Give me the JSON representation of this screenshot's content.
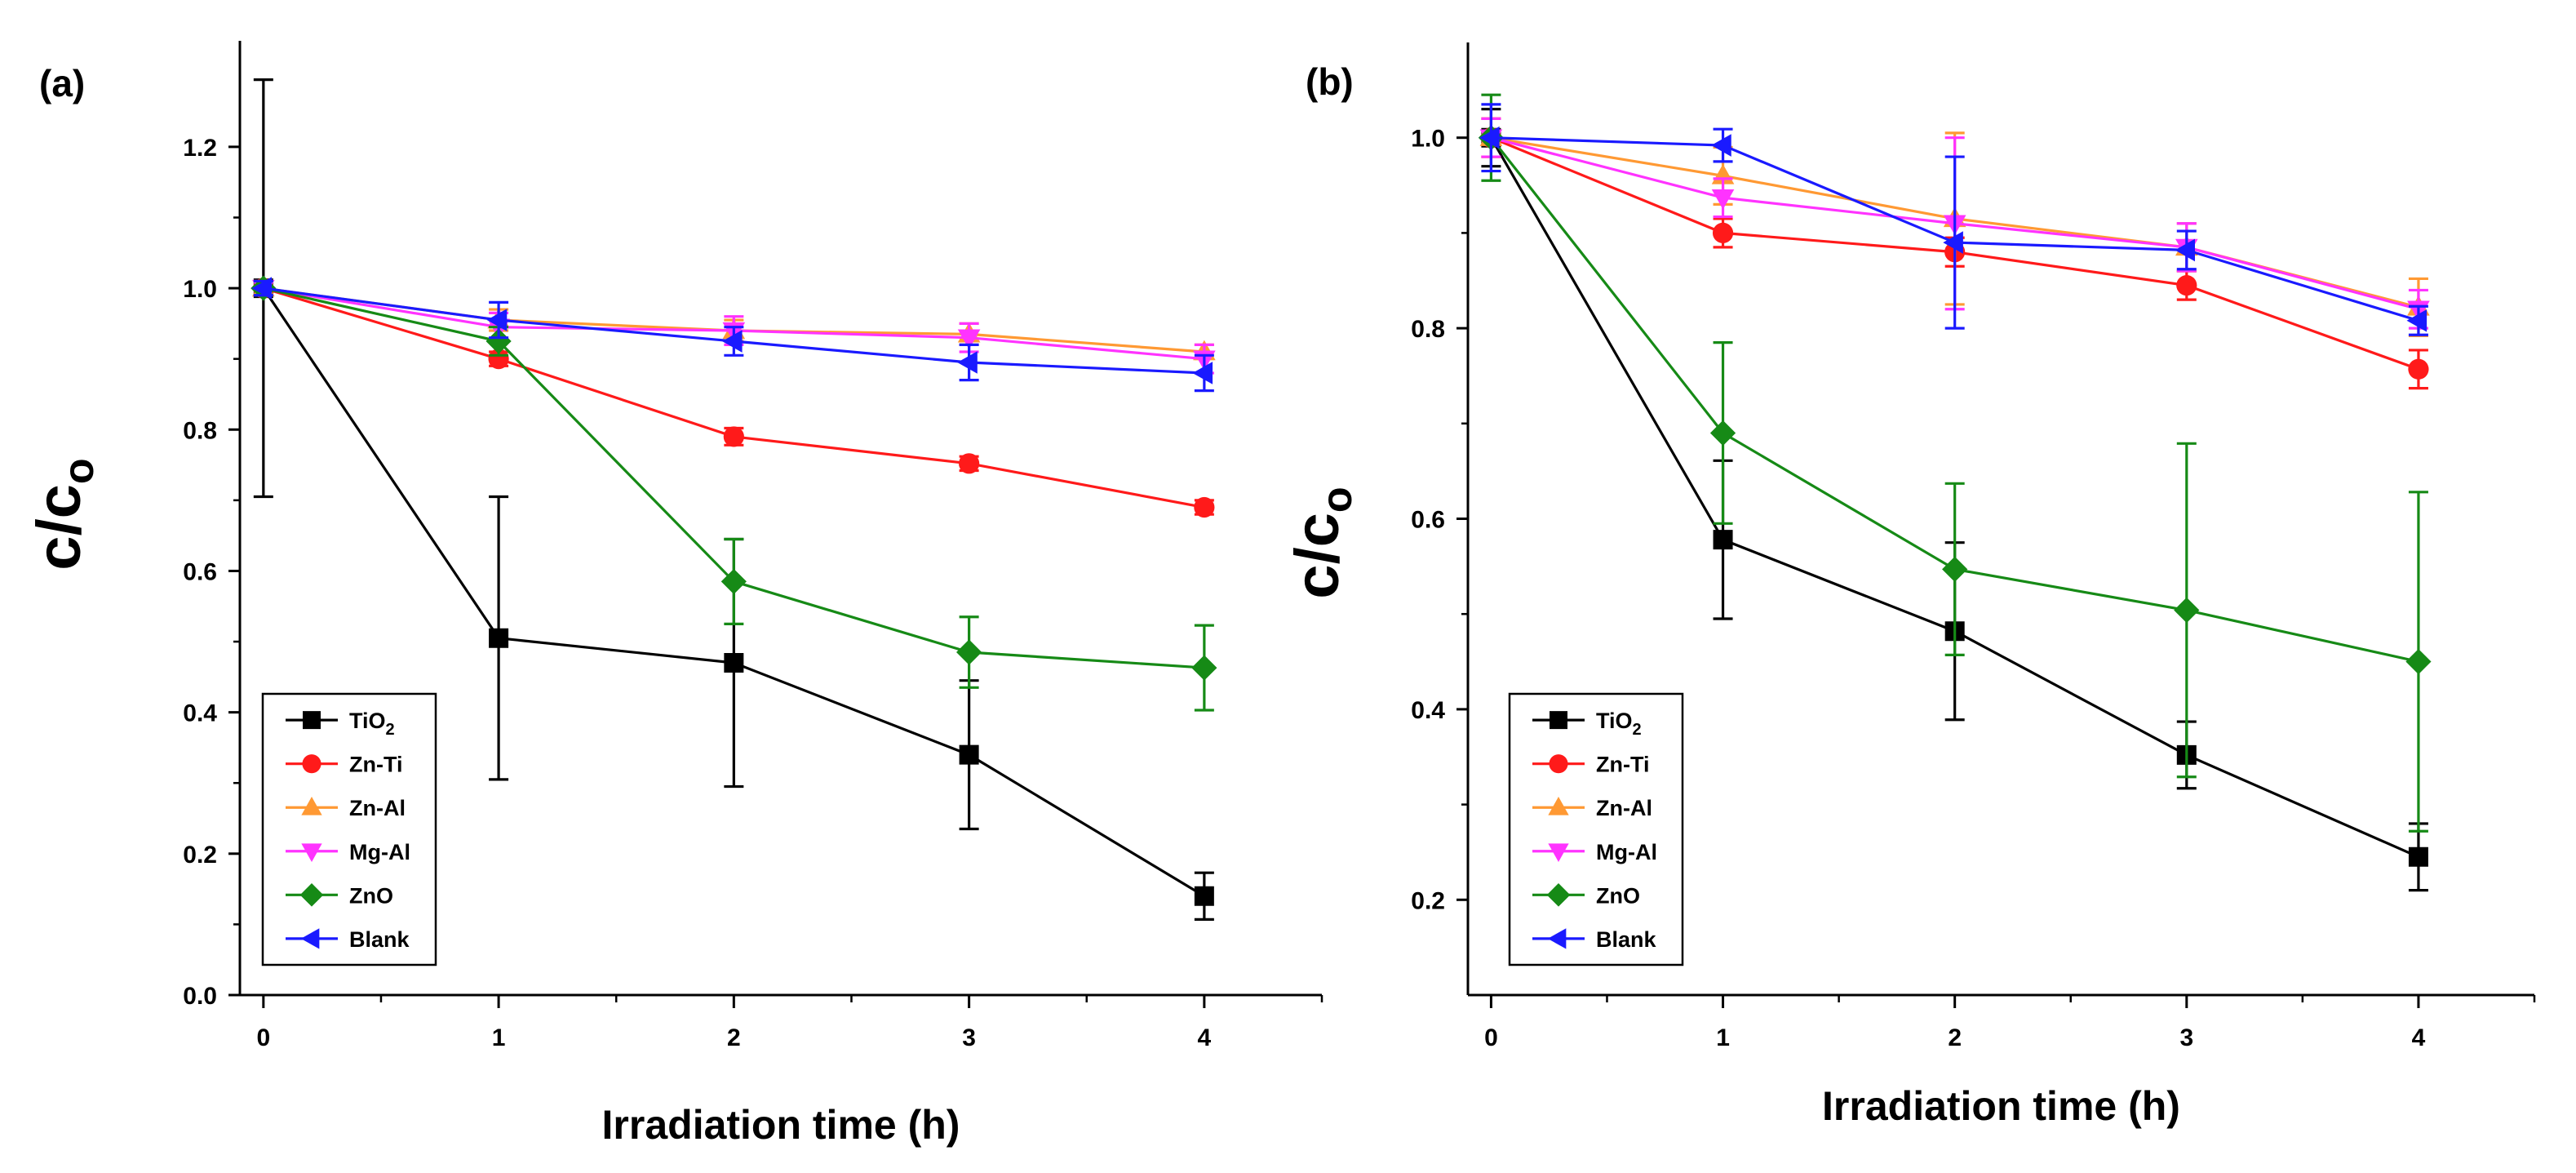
{
  "colors": {
    "TiO2": "#000000",
    "Zn-Ti": "#ff1a1a",
    "Zn-Al": "#ff9933",
    "Mg-Al": "#ff33ff",
    "ZnO": "#168a16",
    "Blank": "#1a1aff"
  },
  "chart_data": [
    {
      "type": "line",
      "panel_label": "(a)",
      "title": "",
      "xlabel": "Irradiation time (h)",
      "ylabel_main": "c/c",
      "ylabel_sub": "o",
      "xlim": [
        -0.1,
        4.5
      ],
      "ylim": [
        0.0,
        1.35
      ],
      "xticks": [
        0,
        1,
        2,
        3,
        4
      ],
      "xtick_labels": [
        "0",
        "1",
        "2",
        "3",
        "4"
      ],
      "yticks": [
        0.0,
        0.2,
        0.4,
        0.6,
        0.8,
        1.0,
        1.2
      ],
      "ytick_labels": [
        "0.0",
        "0.2",
        "0.4",
        "0.6",
        "0.8",
        "1.0",
        "1.2"
      ],
      "legend_position": "bottom-left",
      "x": [
        0,
        1,
        2,
        3,
        4
      ],
      "series": [
        {
          "name": "TiO",
          "name_sub": "2",
          "key": "TiO2",
          "marker": "square",
          "values": [
            1.0,
            0.505,
            0.47,
            0.34,
            0.14
          ],
          "errors": [
            0.295,
            0.2,
            0.175,
            0.105,
            0.033
          ]
        },
        {
          "name": "Zn-Ti",
          "name_sub": "",
          "key": "Zn-Ti",
          "marker": "circle",
          "values": [
            1.0,
            0.9,
            0.79,
            0.752,
            0.69
          ],
          "errors": [
            0.01,
            0.01,
            0.012,
            0.01,
            0.01
          ]
        },
        {
          "name": "Zn-Al",
          "name_sub": "",
          "key": "Zn-Al",
          "marker": "triangle-up",
          "values": [
            1.0,
            0.955,
            0.94,
            0.935,
            0.91
          ],
          "errors": [
            0.01,
            0.015,
            0.015,
            0.015,
            0.01
          ]
        },
        {
          "name": "Mg-Al",
          "name_sub": "",
          "key": "Mg-Al",
          "marker": "triangle-down",
          "values": [
            1.0,
            0.945,
            0.94,
            0.93,
            0.9
          ],
          "errors": [
            0.01,
            0.02,
            0.02,
            0.02,
            0.02
          ]
        },
        {
          "name": "ZnO",
          "name_sub": "",
          "key": "ZnO",
          "marker": "diamond",
          "values": [
            1.0,
            0.925,
            0.585,
            0.485,
            0.463
          ],
          "errors": [
            0.01,
            0.02,
            0.06,
            0.05,
            0.06
          ]
        },
        {
          "name": "Blank",
          "name_sub": "",
          "key": "Blank",
          "marker": "triangle-left",
          "values": [
            1.0,
            0.955,
            0.925,
            0.895,
            0.88
          ],
          "errors": [
            0.01,
            0.025,
            0.02,
            0.025,
            0.025
          ]
        }
      ]
    },
    {
      "type": "line",
      "panel_label": "(b)",
      "title": "",
      "xlabel": "Irradiation time (h)",
      "ylabel_main": "c/c",
      "ylabel_sub": "o",
      "xlim": [
        -0.1,
        4.5
      ],
      "ylim": [
        0.1,
        1.1
      ],
      "xticks": [
        0,
        1,
        2,
        3,
        4
      ],
      "xtick_labels": [
        "0",
        "1",
        "2",
        "3",
        "4"
      ],
      "yticks": [
        0.2,
        0.4,
        0.6,
        0.8,
        1.0
      ],
      "ytick_labels": [
        "0.2",
        "0.4",
        "0.6",
        "0.8",
        "1.0"
      ],
      "legend_position": "bottom-left",
      "x": [
        0,
        1,
        2,
        3,
        4
      ],
      "series": [
        {
          "name": "TiO",
          "name_sub": "2",
          "key": "TiO2",
          "marker": "square",
          "values": [
            1.0,
            0.578,
            0.482,
            0.352,
            0.245
          ],
          "errors": [
            0.03,
            0.083,
            0.093,
            0.035,
            0.035
          ]
        },
        {
          "name": "Zn-Ti",
          "name_sub": "",
          "key": "Zn-Ti",
          "marker": "circle",
          "values": [
            1.0,
            0.9,
            0.88,
            0.845,
            0.757
          ],
          "errors": [
            0.02,
            0.015,
            0.015,
            0.015,
            0.02
          ]
        },
        {
          "name": "Zn-Al",
          "name_sub": "",
          "key": "Zn-Al",
          "marker": "triangle-up",
          "values": [
            1.0,
            0.96,
            0.915,
            0.885,
            0.822
          ],
          "errors": [
            0.02,
            0.03,
            0.09,
            0.025,
            0.03
          ]
        },
        {
          "name": "Mg-Al",
          "name_sub": "",
          "key": "Mg-Al",
          "marker": "triangle-down",
          "values": [
            1.0,
            0.937,
            0.91,
            0.885,
            0.82
          ],
          "errors": [
            0.02,
            0.02,
            0.09,
            0.025,
            0.02
          ]
        },
        {
          "name": "ZnO",
          "name_sub": "",
          "key": "ZnO",
          "marker": "diamond",
          "values": [
            1.0,
            0.69,
            0.547,
            0.504,
            0.45
          ],
          "errors": [
            0.045,
            0.095,
            0.09,
            0.175,
            0.178
          ]
        },
        {
          "name": "Blank",
          "name_sub": "",
          "key": "Blank",
          "marker": "triangle-left",
          "values": [
            1.0,
            0.992,
            0.89,
            0.882,
            0.808
          ],
          "errors": [
            0.035,
            0.017,
            0.09,
            0.02,
            0.015
          ]
        }
      ]
    }
  ]
}
